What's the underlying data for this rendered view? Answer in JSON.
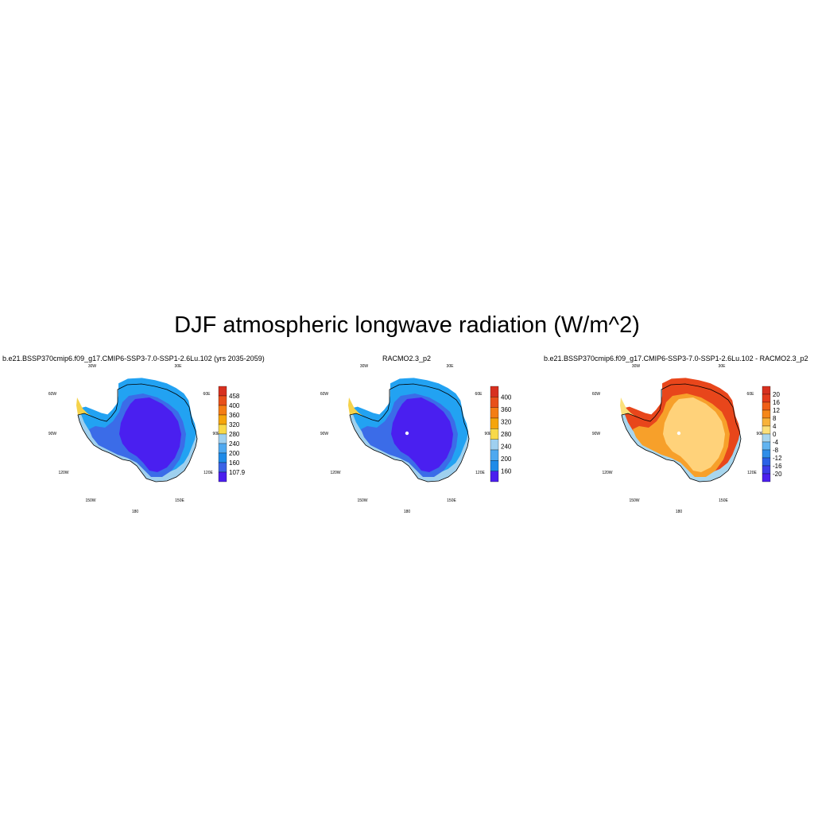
{
  "title": "DJF atmospheric longwave radiation (W/m^2)",
  "panels": [
    {
      "title": "b.e21.BSSP370cmip6.f09_g17.CMIP6-SSP3-7.0-SSP1-2.6Lu.102 (yrs 2035-2059)",
      "colorbar": {
        "labels": [
          "458",
          "400",
          "360",
          "320",
          "280",
          "240",
          "200",
          "160",
          "107.9"
        ],
        "colors": [
          "#d7301f",
          "#e8501a",
          "#f47d14",
          "#f5a50c",
          "#f8d94a",
          "#9fd0f0",
          "#4fa9f0",
          "#1f8be8",
          "#3b63e6",
          "#4b1fee"
        ]
      },
      "colors": {
        "interior": "#4a1ff0",
        "mid": "#3b6ce8",
        "coast": "#22a2f2",
        "light": "#9fd0ee",
        "yellow": "#f5d24a"
      }
    },
    {
      "title": "RACMO2.3_p2",
      "colorbar": {
        "labels": [
          "400",
          "360",
          "320",
          "280",
          "240",
          "200",
          "160"
        ],
        "colors": [
          "#d7301f",
          "#e8501a",
          "#f47d14",
          "#f5a50c",
          "#f8d94a",
          "#9fd0f0",
          "#4fa9f0",
          "#1f8be8",
          "#4b1fee"
        ]
      },
      "colors": {
        "interior": "#4a1ff0",
        "mid": "#3b6ce8",
        "coast": "#22a2f2",
        "light": "#9fd0ee",
        "yellow": "#f5d24a"
      }
    },
    {
      "title": "b.e21.BSSP370cmip6.f09_g17.CMIP6-SSP3-7.0-SSP1-2.6Lu.102 - RACMO2.3_p2",
      "colorbar": {
        "labels": [
          "20",
          "16",
          "12",
          "8",
          "4",
          "0",
          "-4",
          "-8",
          "-12",
          "-16",
          "-20"
        ],
        "colors": [
          "#d7301f",
          "#e33b1c",
          "#ef5f17",
          "#f5871a",
          "#f8b23a",
          "#fbe07a",
          "#a8d6ee",
          "#62b4f0",
          "#2f8ee8",
          "#2b62e6",
          "#3b3ce8",
          "#4b1fee"
        ]
      },
      "colors": {
        "interior": "#ffd27a",
        "mid": "#f7a02a",
        "coast": "#e8461b",
        "light": "#a8d6ee",
        "yellow": "#fbe07a"
      }
    }
  ],
  "lon_labels": [
    "30W",
    "30E",
    "60W",
    "60E",
    "90W",
    "90E",
    "120W",
    "120E",
    "150W",
    "150E",
    "180"
  ]
}
